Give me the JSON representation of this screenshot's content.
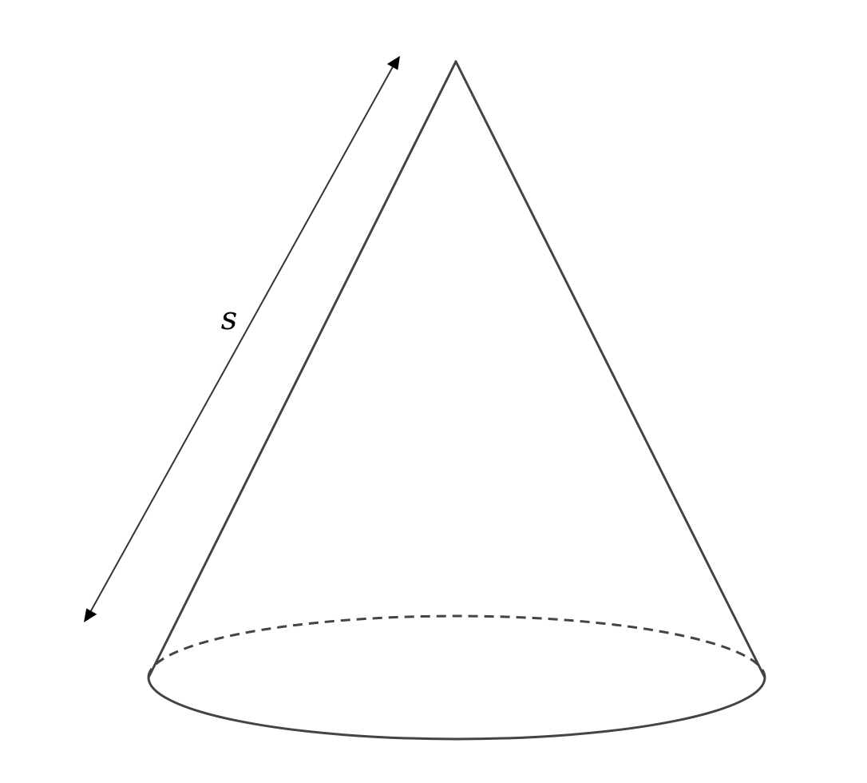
{
  "figure": {
    "slant_label": "s"
  }
}
